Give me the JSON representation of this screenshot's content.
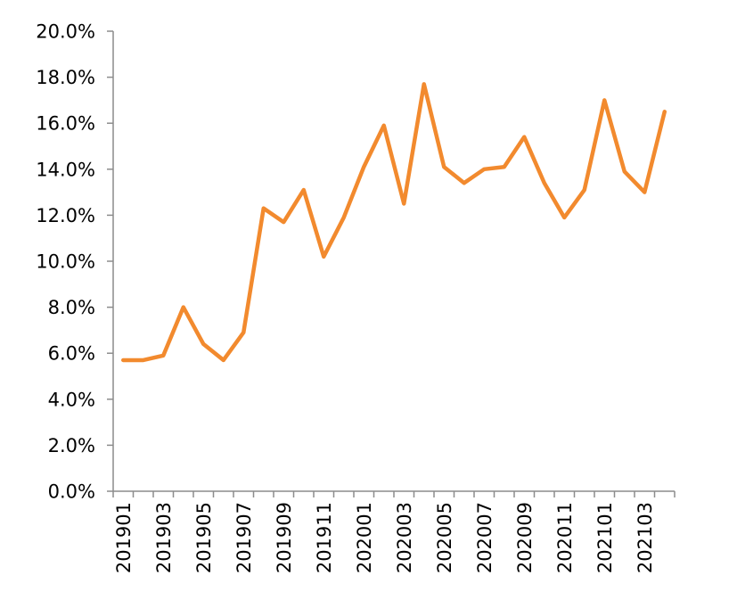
{
  "chart_data": {
    "type": "line",
    "title": "",
    "xlabel": "",
    "ylabel": "",
    "ylim": [
      0,
      20
    ],
    "y_ticks": [
      "0.0%",
      "2.0%",
      "4.0%",
      "6.0%",
      "8.0%",
      "10.0%",
      "12.0%",
      "14.0%",
      "16.0%",
      "18.0%",
      "20.0%"
    ],
    "categories": [
      "201901",
      "201902",
      "201903",
      "201904",
      "201905",
      "201906",
      "201907",
      "201908",
      "201909",
      "201910",
      "201911",
      "201912",
      "202001",
      "202002",
      "202003",
      "202004",
      "202005",
      "202006",
      "202007",
      "202008",
      "202009",
      "202010",
      "202011",
      "202012",
      "202101",
      "202102",
      "202103",
      "202104"
    ],
    "x_tick_labels": [
      "201901",
      "",
      "201903",
      "",
      "201905",
      "",
      "201907",
      "",
      "201909",
      "",
      "201911",
      "",
      "202001",
      "",
      "202003",
      "",
      "202005",
      "",
      "202007",
      "",
      "202009",
      "",
      "202011",
      "",
      "202101",
      "",
      "202103",
      ""
    ],
    "series": [
      {
        "name": "series-1",
        "color": "#F28A2E",
        "values": [
          5.7,
          5.7,
          5.9,
          8.0,
          6.4,
          5.7,
          6.9,
          12.3,
          11.7,
          13.1,
          10.2,
          11.9,
          14.1,
          15.9,
          12.5,
          17.7,
          14.1,
          13.4,
          14.0,
          14.1,
          15.4,
          13.4,
          11.9,
          13.1,
          17.0,
          13.9,
          13.0,
          16.5
        ]
      }
    ],
    "grid": false,
    "legend": "none"
  }
}
